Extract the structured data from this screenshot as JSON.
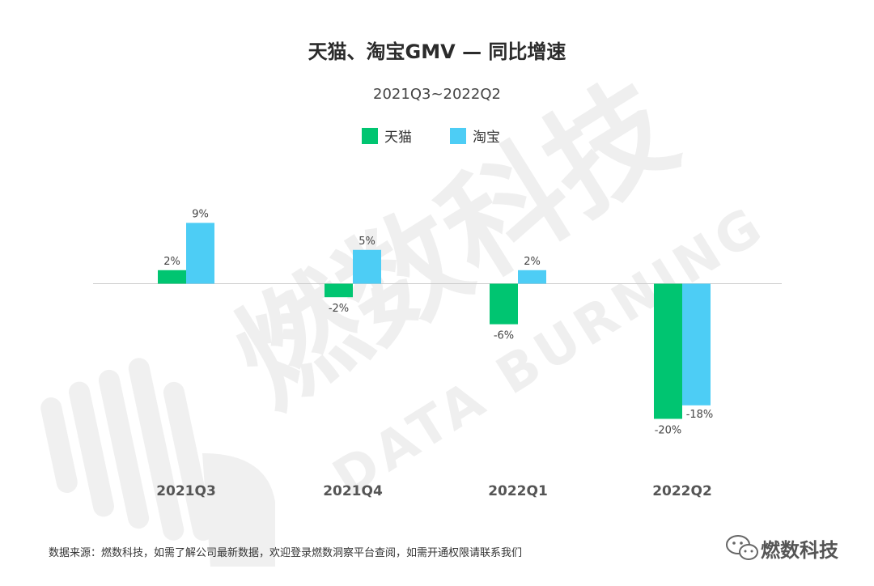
{
  "title": "天猫、淘宝GMV — 同比增速",
  "subtitle": "2021Q3~2022Q2",
  "colors": {
    "tmall": "#00c571",
    "taobao": "#4dcdf5",
    "axis": "#cccccc",
    "watermark": "#efefef"
  },
  "chart_data": {
    "type": "bar",
    "categories": [
      "2021Q3",
      "2021Q4",
      "2022Q1",
      "2022Q2"
    ],
    "series": [
      {
        "name": "天猫",
        "values": [
          2,
          -2,
          -6,
          -20
        ],
        "labels": [
          "2%",
          "-2%",
          "-6%",
          "-20%"
        ],
        "color": "#00c571"
      },
      {
        "name": "淘宝",
        "values": [
          9,
          5,
          2,
          -18
        ],
        "labels": [
          "9%",
          "5%",
          "2%",
          "-18%"
        ],
        "color": "#4dcdf5"
      }
    ],
    "unit": "%",
    "ylim": [
      -20,
      9
    ],
    "grid": false,
    "legend": "top-center"
  },
  "watermark": {
    "main": "燃数科技",
    "sub": "DATA BURNING"
  },
  "footer": {
    "source": "数据来源：燃数科技，如需了解公司最新数据，欢迎登录燃数洞察平台查阅，如需开通权限请联系我们",
    "brand": "燃数科技",
    "brand_icon": "wechat-icon"
  }
}
